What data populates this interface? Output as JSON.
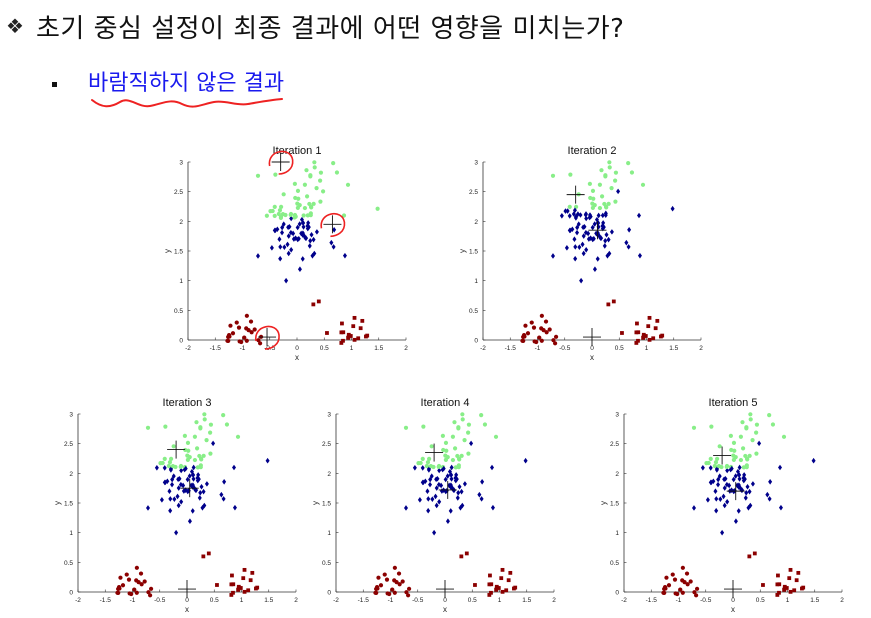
{
  "slide": {
    "bullet_glyph": "❖",
    "heading": "초기 중심 설정이 최종 결과에 어떤 영향을 미치는가?",
    "subheading": "바람직하지 않은 결과"
  },
  "colors": {
    "cluster_top": "#88ee88",
    "cluster_mid": "#00008b",
    "cluster_low": "#8b0000",
    "annotation": "#ee2222",
    "subheading": "#1a1aee"
  },
  "chart_data": [
    {
      "type": "scatter",
      "title": "Iteration 1",
      "xlabel": "x",
      "ylabel": "y",
      "xlim": [
        -2,
        2
      ],
      "ylim": [
        0,
        3
      ],
      "xticks": [
        "-2",
        "-1.5",
        "-1",
        "-0.5",
        "0",
        "0.5",
        "1",
        "1.5",
        "2"
      ],
      "yticks": [
        "0",
        "0.5",
        "1",
        "1.5",
        "2",
        "2.5",
        "3"
      ],
      "centroids": [
        [
          -0.3,
          3.0
        ],
        [
          0.65,
          1.95
        ],
        [
          -0.55,
          0.05
        ]
      ],
      "circled_centroids": true,
      "assignment": "iter1"
    },
    {
      "type": "scatter",
      "title": "Iteration 2",
      "xlabel": "x",
      "ylabel": "y",
      "xlim": [
        -2,
        2
      ],
      "ylim": [
        0,
        3
      ],
      "xticks": [
        "-2",
        "-1.5",
        "-1",
        "-0.5",
        "0",
        "0.5",
        "1",
        "1.5",
        "2"
      ],
      "yticks": [
        "0",
        "0.5",
        "1",
        "1.5",
        "2",
        "2.5",
        "3"
      ],
      "centroids": [
        [
          -0.3,
          2.45
        ],
        [
          0.1,
          1.85
        ],
        [
          0.0,
          0.05
        ]
      ],
      "assignment": "iter2"
    },
    {
      "type": "scatter",
      "title": "Iteration 3",
      "xlabel": "x",
      "ylabel": "y",
      "xlim": [
        -2,
        2
      ],
      "ylim": [
        0,
        3
      ],
      "xticks": [
        "-2",
        "-1.5",
        "-1",
        "-0.5",
        "0",
        "0.5",
        "1",
        "1.5",
        "2"
      ],
      "yticks": [
        "0",
        "0.5",
        "1",
        "1.5",
        "2",
        "2.5",
        "3"
      ],
      "centroids": [
        [
          -0.2,
          2.4
        ],
        [
          0.05,
          1.75
        ],
        [
          0.0,
          0.05
        ]
      ],
      "assignment": "iter3"
    },
    {
      "type": "scatter",
      "title": "Iteration 4",
      "xlabel": "x",
      "ylabel": "y",
      "xlim": [
        -2,
        2
      ],
      "ylim": [
        0,
        3
      ],
      "xticks": [
        "-2",
        "-1.5",
        "-1",
        "-0.5",
        "0",
        "0.5",
        "1",
        "1.5",
        "2"
      ],
      "yticks": [
        "0",
        "0.5",
        "1",
        "1.5",
        "2",
        "2.5",
        "3"
      ],
      "centroids": [
        [
          -0.2,
          2.35
        ],
        [
          0.05,
          1.72
        ],
        [
          0.0,
          0.05
        ]
      ],
      "assignment": "iter4"
    },
    {
      "type": "scatter",
      "title": "Iteration 5",
      "xlabel": "x",
      "ylabel": "y",
      "xlim": [
        -2,
        2
      ],
      "ylim": [
        0,
        3
      ],
      "xticks": [
        "-2",
        "-1.5",
        "-1",
        "-0.5",
        "0",
        "0.5",
        "1",
        "1.5",
        "2"
      ],
      "yticks": [
        "0",
        "0.5",
        "1",
        "1.5",
        "2",
        "2.5",
        "3"
      ],
      "centroids": [
        [
          -0.2,
          2.3
        ],
        [
          0.05,
          1.7
        ],
        [
          0.0,
          0.05
        ]
      ],
      "assignment": "iter5"
    }
  ]
}
